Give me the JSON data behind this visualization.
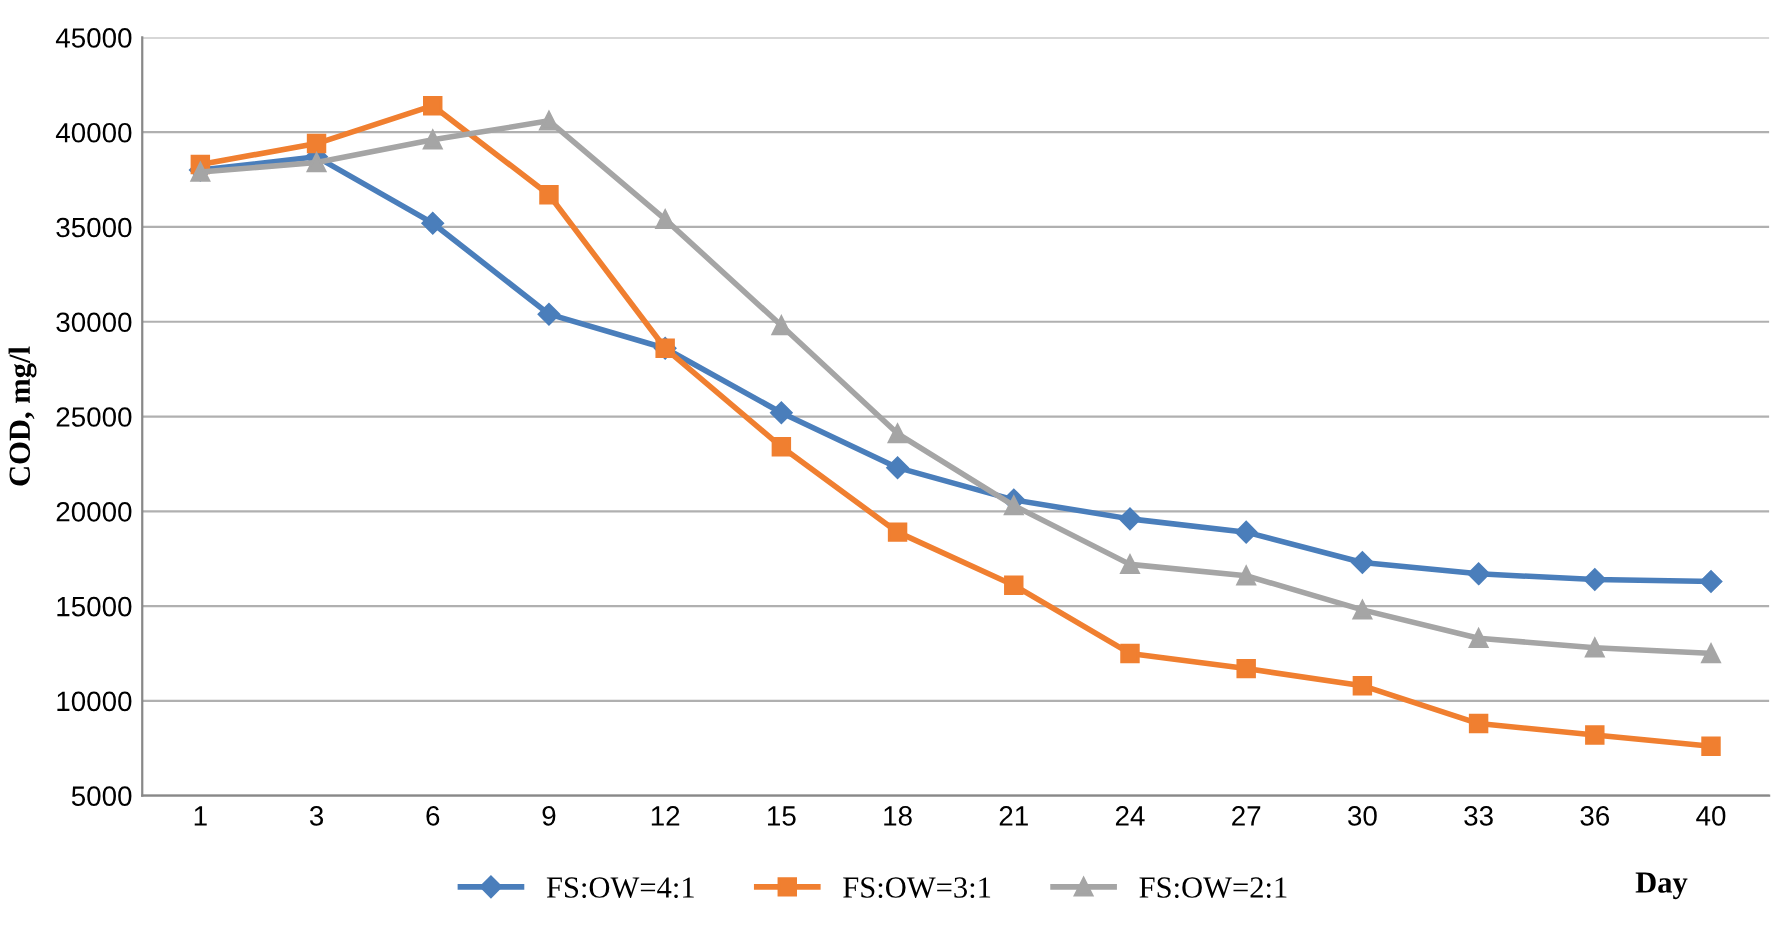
{
  "chart_data": {
    "type": "line",
    "ylabel": "COD, mg/l",
    "xlabel": "Day",
    "categories": [
      "1",
      "3",
      "6",
      "9",
      "12",
      "15",
      "18",
      "21",
      "24",
      "27",
      "30",
      "33",
      "36",
      "40"
    ],
    "ylim": [
      5000,
      45000
    ],
    "yticks": [
      5000,
      10000,
      15000,
      20000,
      25000,
      30000,
      35000,
      40000,
      45000
    ],
    "grid": "y",
    "legend": "bottom",
    "line_style": "solid",
    "series": [
      {
        "name": "FS:OW=4:1",
        "color": "#4a7ebb",
        "marker": "diamond",
        "values": [
          38000,
          38700,
          35200,
          30400,
          28600,
          25200,
          22300,
          20600,
          19600,
          18900,
          17300,
          16700,
          16400,
          16300
        ]
      },
      {
        "name": "FS:OW=3:1",
        "color": "#f07f30",
        "marker": "square",
        "values": [
          38300,
          39400,
          41400,
          36700,
          28600,
          23400,
          18900,
          16100,
          12500,
          11700,
          10800,
          8800,
          8200,
          7600
        ]
      },
      {
        "name": "FS:OW=2:1",
        "color": "#a5a5a5",
        "marker": "triangle",
        "values": [
          37900,
          38400,
          39600,
          40600,
          35400,
          29800,
          24100,
          20300,
          17200,
          16600,
          14800,
          13300,
          12800,
          12500
        ]
      }
    ]
  }
}
